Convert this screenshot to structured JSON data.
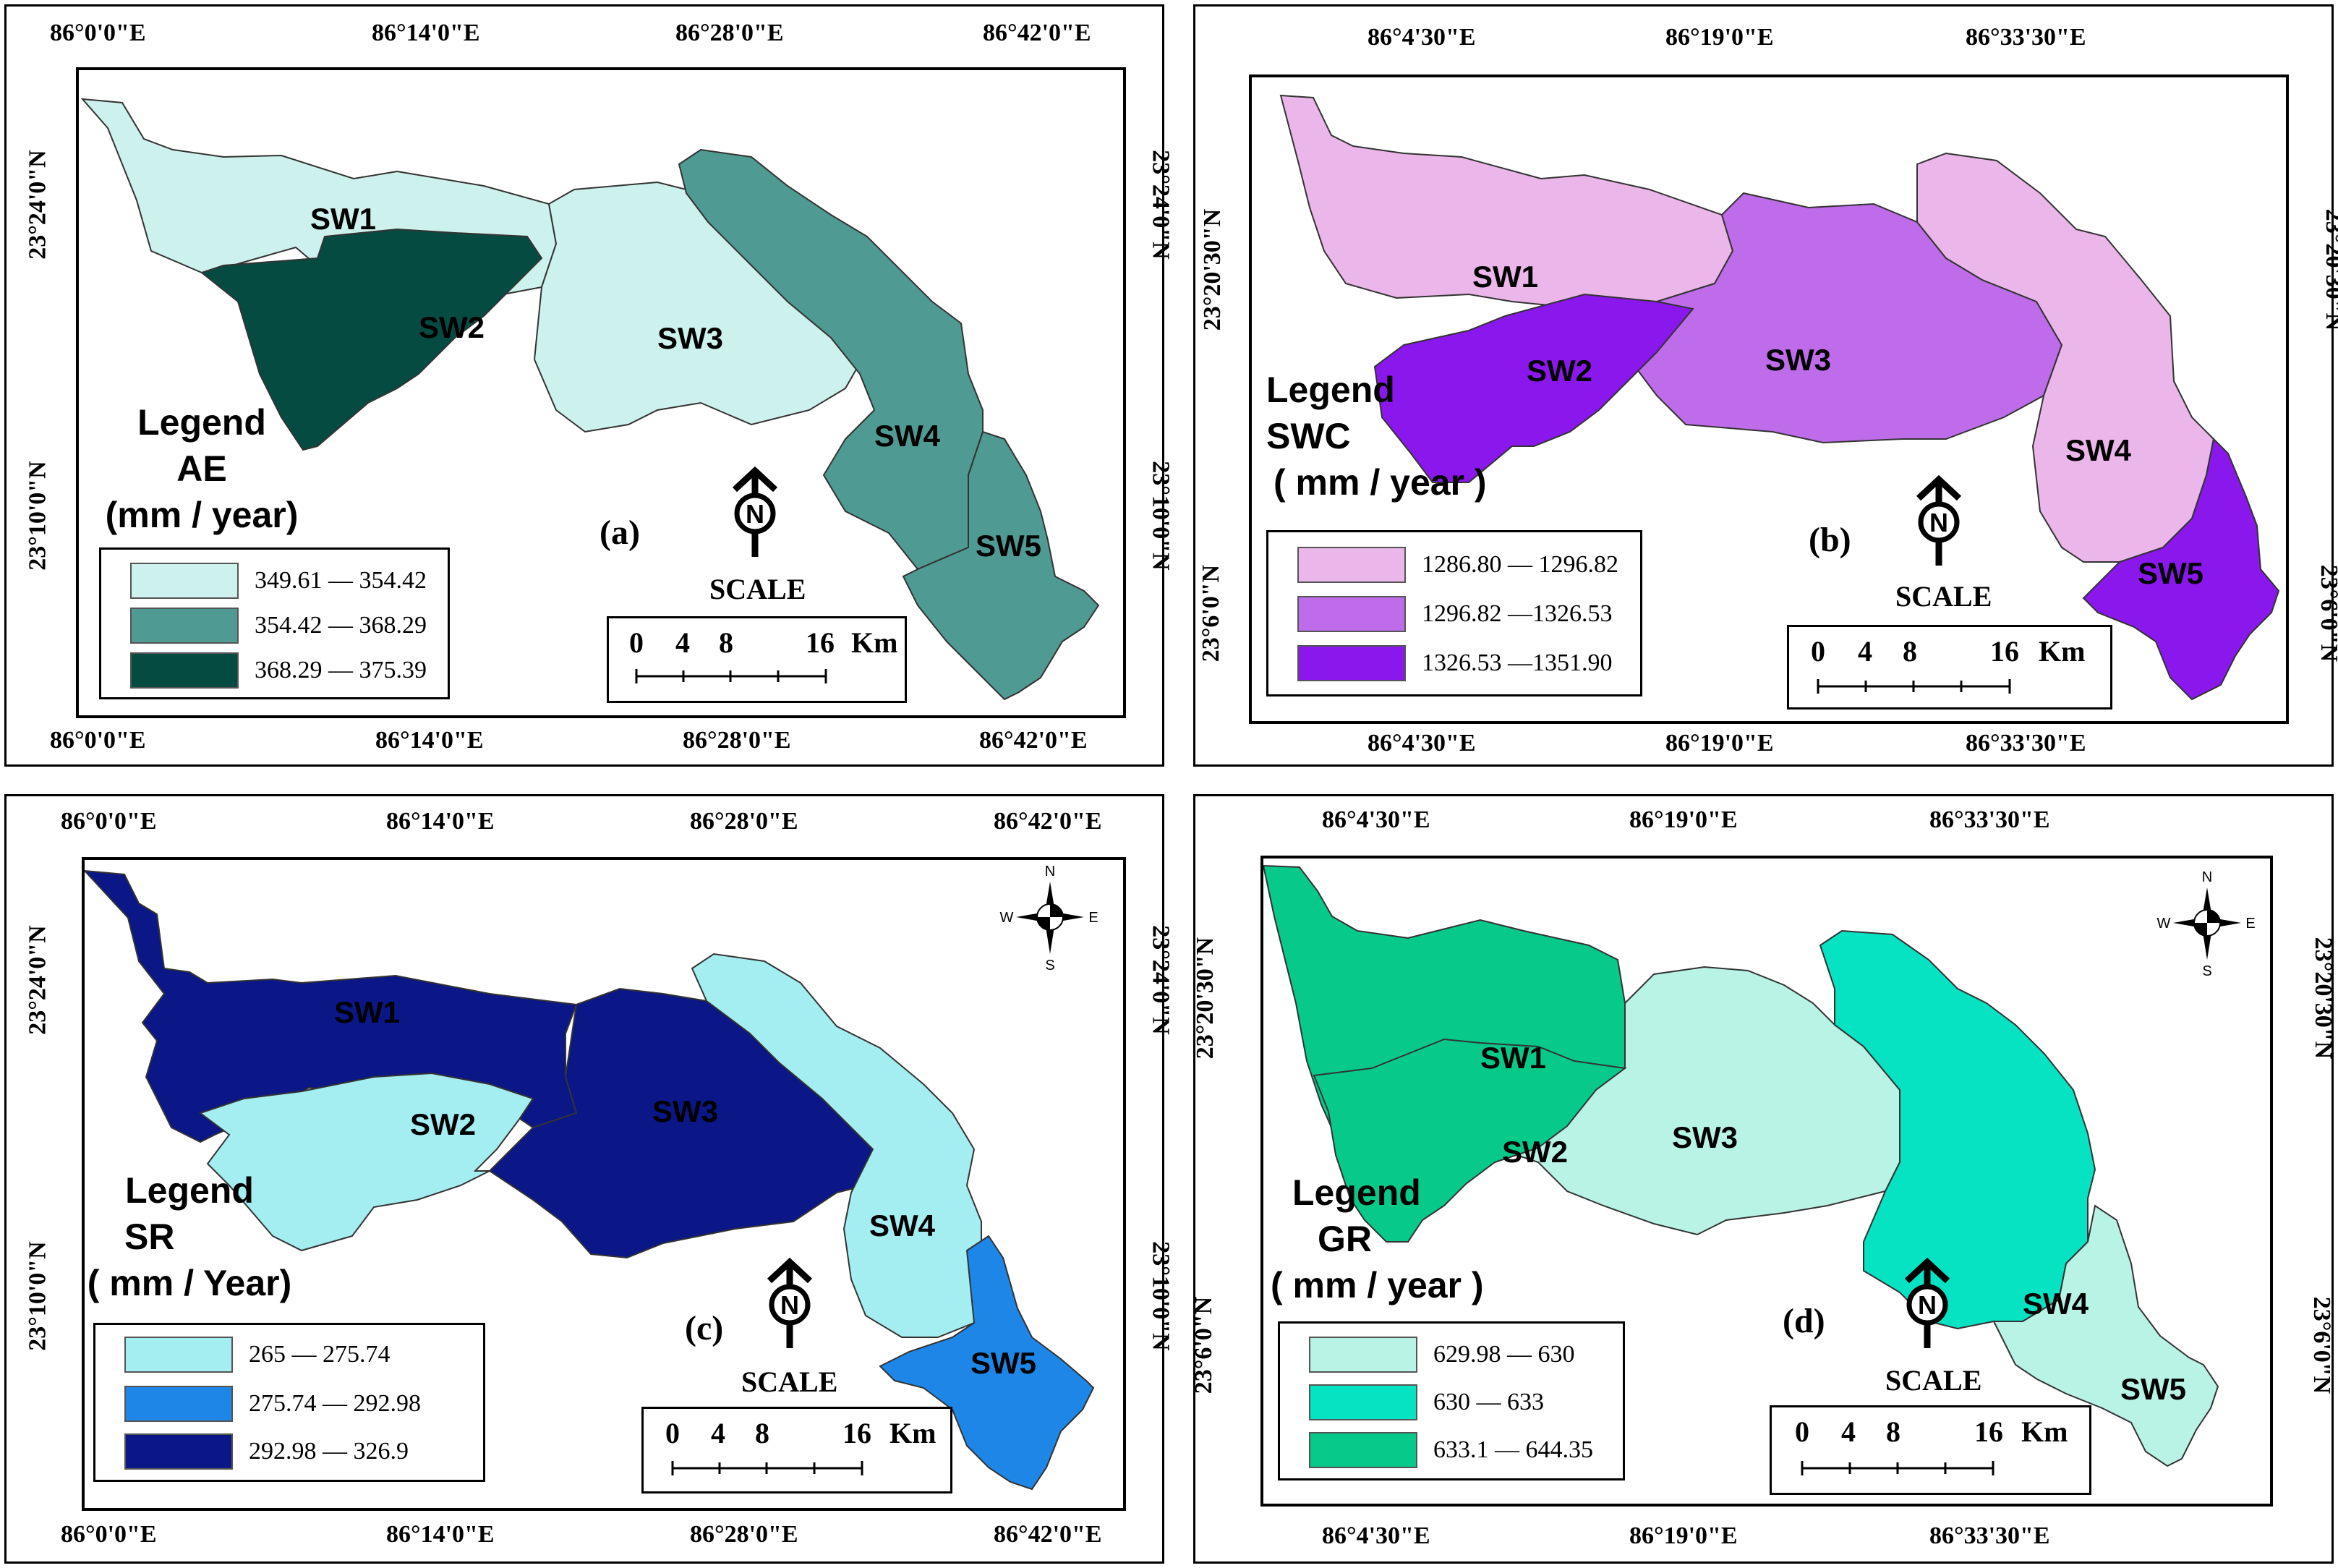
{
  "panels": {
    "a": {
      "label": "(a)",
      "top_ticks": [
        "86°0'0\"E",
        "86°14'0\"E",
        "86°28'0\"E",
        "86°42'0\"E"
      ],
      "bottom_ticks": [
        "86°0'0\"E",
        "86°14'0\"E",
        "86°28'0\"E",
        "86°42'0\"E"
      ],
      "left_ticks": [
        "23°24'0\"N",
        "23°10'0\"N"
      ],
      "right_ticks": [
        "23°24'0\"N",
        "23°10'0\"N"
      ],
      "legend_title": [
        "Legend",
        "AE",
        "(mm / year)"
      ],
      "legend": [
        {
          "label": "349.61 — 354.42",
          "color": "#cdf1ec"
        },
        {
          "label": "354.42 — 368.29",
          "color": "#4f9a92"
        },
        {
          "label": "368.29 — 375.39",
          "color": "#054b42"
        }
      ],
      "subwatersheds": [
        "SW1",
        "SW2",
        "SW3",
        "SW4",
        "SW5"
      ],
      "colors": {
        "SW1": "#cdf1ec",
        "SW2": "#054b42",
        "SW3": "#cdf1ec",
        "SW4": "#4f9a92",
        "SW5": "#4f9a92"
      },
      "scale_title": "SCALE",
      "scale": [
        "0",
        "4",
        "8",
        "16",
        "Km"
      ],
      "north": "N"
    },
    "b": {
      "label": "(b)",
      "top_ticks": [
        "86°4'30\"E",
        "86°19'0\"E",
        "86°33'30\"E"
      ],
      "bottom_ticks": [
        "86°4'30\"E",
        "86°19'0\"E",
        "86°33'30\"E"
      ],
      "left_ticks": [
        "23°20'30\"N",
        "23°6'0\"N"
      ],
      "right_ticks": [
        "23°20'30\"N",
        "23°6'0\"N"
      ],
      "legend_title": [
        "Legend",
        "SWC",
        "( mm / year )"
      ],
      "legend": [
        {
          "label": "1286.80 — 1296.82",
          "color": "#ebb6e9"
        },
        {
          "label": "1296.82 —1326.53",
          "color": "#bf6cea"
        },
        {
          "label": "1326.53 —1351.90",
          "color": "#8a17ec"
        }
      ],
      "subwatersheds": [
        "SW1",
        "SW2",
        "SW3",
        "SW4",
        "SW5"
      ],
      "colors": {
        "SW1": "#ebb6e9",
        "SW2": "#8a17ec",
        "SW3": "#bf6cea",
        "SW4": "#ebb6e9",
        "SW5": "#8a17ec"
      },
      "scale_title": "SCALE",
      "scale": [
        "0",
        "4",
        "8",
        "16",
        "Km"
      ],
      "north": "N"
    },
    "c": {
      "label": "(c)",
      "top_ticks": [
        "86°0'0\"E",
        "86°14'0\"E",
        "86°28'0\"E",
        "86°42'0\"E"
      ],
      "bottom_ticks": [
        "86°0'0\"E",
        "86°14'0\"E",
        "86°28'0\"E",
        "86°42'0\"E"
      ],
      "left_ticks": [
        "23°24'0\"N",
        "23°10'0\"N"
      ],
      "right_ticks": [
        "23°24'0\"N",
        "23°10'0\"N"
      ],
      "legend_title": [
        "Legend",
        "SR",
        "( mm / Year)"
      ],
      "legend": [
        {
          "label": "265 — 275.74",
          "color": "#a4eef1"
        },
        {
          "label": "275.74 — 292.98",
          "color": "#1e86e6"
        },
        {
          "label": "292.98 — 326.9",
          "color": "#0b1687"
        }
      ],
      "subwatersheds": [
        "SW1",
        "SW2",
        "SW3",
        "SW4",
        "SW5"
      ],
      "colors": {
        "SW1": "#0b1687",
        "SW2": "#a4eef1",
        "SW3": "#0b1687",
        "SW4": "#a4eef1",
        "SW5": "#1e86e6"
      },
      "scale_title": "SCALE",
      "scale": [
        "0",
        "4",
        "8",
        "16",
        "Km"
      ],
      "north": "N",
      "compass": [
        "N",
        "E",
        "S",
        "W"
      ]
    },
    "d": {
      "label": "(d)",
      "top_ticks": [
        "86°4'30\"E",
        "86°19'0\"E",
        "86°33'30\"E"
      ],
      "bottom_ticks": [
        "86°4'30\"E",
        "86°19'0\"E",
        "86°33'30\"E"
      ],
      "left_ticks": [
        "23°20'30\"N",
        "23°6'0\"N"
      ],
      "right_ticks": [
        "23°20'30\"N",
        "23°6'0\"N"
      ],
      "legend_title": [
        "Legend",
        "GR",
        "( mm / year )"
      ],
      "legend": [
        {
          "label": "629.98 — 630",
          "color": "#b9f3e6"
        },
        {
          "label": "630 — 633",
          "color": "#05e3c3"
        },
        {
          "label": "633.1 — 644.35",
          "color": "#06c98a"
        }
      ],
      "subwatersheds": [
        "SW1",
        "SW2",
        "SW3",
        "SW4",
        "SW5"
      ],
      "colors": {
        "SW1": "#06c98a",
        "SW2": "#06c98a",
        "SW3": "#b9f3e6",
        "SW4": "#05e3c3",
        "SW5": "#b9f3e6"
      },
      "scale_title": "SCALE",
      "scale": [
        "0",
        "4",
        "8",
        "16",
        "Km"
      ],
      "north": "N",
      "compass": [
        "N",
        "E",
        "S",
        "W"
      ]
    }
  }
}
